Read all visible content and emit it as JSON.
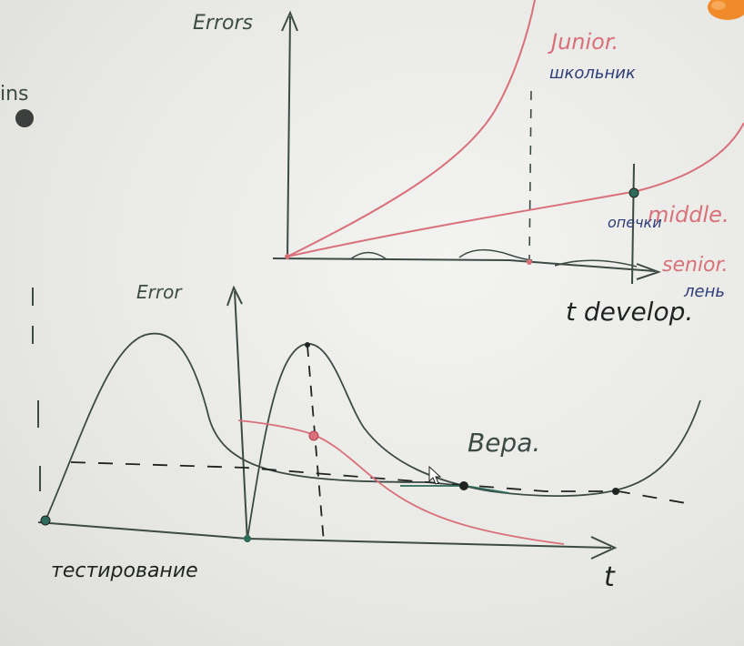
{
  "colors": {
    "ink_dark": "#3d4a45",
    "ink_black": "#1f2422",
    "ink_red": "#d9707a",
    "ink_blue": "#2f3e7a",
    "ink_green": "#2f6b5a",
    "marker_orange": "#f08a2a"
  },
  "top_chart": {
    "y_axis_label": "Errors",
    "x_axis_label": "t develop.",
    "series": [
      {
        "name": "Junior.",
        "subtitle": "школьник",
        "color": "#d9707a",
        "subtitle_color": "#2f3e7a"
      },
      {
        "name": "middle.",
        "subtitle": "опечки",
        "color": "#d9707a",
        "subtitle_color": "#2f3e7a"
      },
      {
        "name": "senior.",
        "subtitle": "лень",
        "color": "#d9707a",
        "subtitle_color": "#2f3e7a"
      }
    ]
  },
  "bottom_chart": {
    "y_axis_label": "Error",
    "x_axis_label": "t",
    "bottom_caption": "тестирование",
    "note": "Вера."
  },
  "left_edge_text": "ins"
}
